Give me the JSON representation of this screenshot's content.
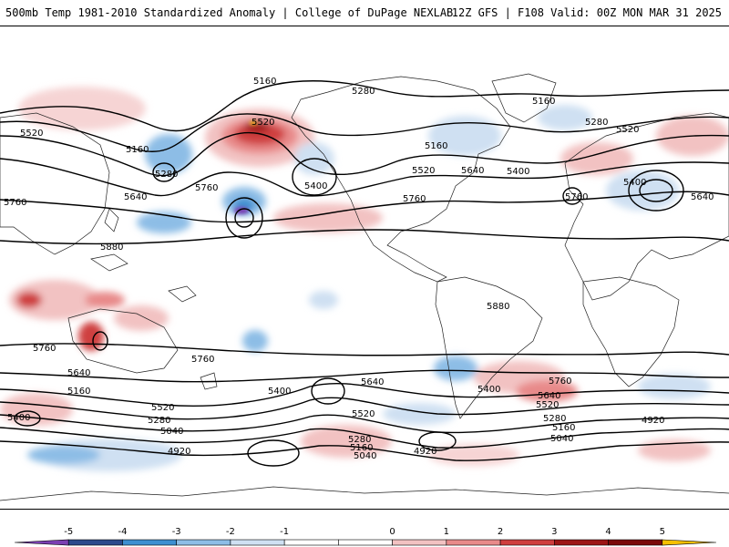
{
  "header": {
    "title_left": "500mb Temp 1981-2010 Standardized Anomaly | College of DuPage NEXLAB",
    "title_right": "12Z GFS | F108 Valid: 00Z MON MAR 31 2025"
  },
  "colorbar": {
    "ticks": [
      "-5",
      "-4",
      "-3",
      "-2",
      "-1",
      "0",
      "1",
      "2",
      "3",
      "4",
      "5"
    ],
    "colors": [
      "#7b3fb2",
      "#2c4a8c",
      "#3d8fd1",
      "#8dbde6",
      "#cfe0f2",
      "#ffffff",
      "#ffffff",
      "#f2c2c2",
      "#e88a8a",
      "#cf3f3f",
      "#9c1616",
      "#7a0a0a",
      "#f5c000"
    ]
  },
  "contour_labels": [
    "5160",
    "5280",
    "5160",
    "5520",
    "5280",
    "5520",
    "5160",
    "5520",
    "5160",
    "5280",
    "5640",
    "5400",
    "5520",
    "5640",
    "5400",
    "5760",
    "5400",
    "5760",
    "5640",
    "5760",
    "5880",
    "5880",
    "5760",
    "5760",
    "5760",
    "5640",
    "5400",
    "5160",
    "5400",
    "5640",
    "5520",
    "5280",
    "5040",
    "4920",
    "5520",
    "5280",
    "5160",
    "5040",
    "4920",
    "5400",
    "5640",
    "5520",
    "5760",
    "5280",
    "5160",
    "5040",
    "4920"
  ]
}
